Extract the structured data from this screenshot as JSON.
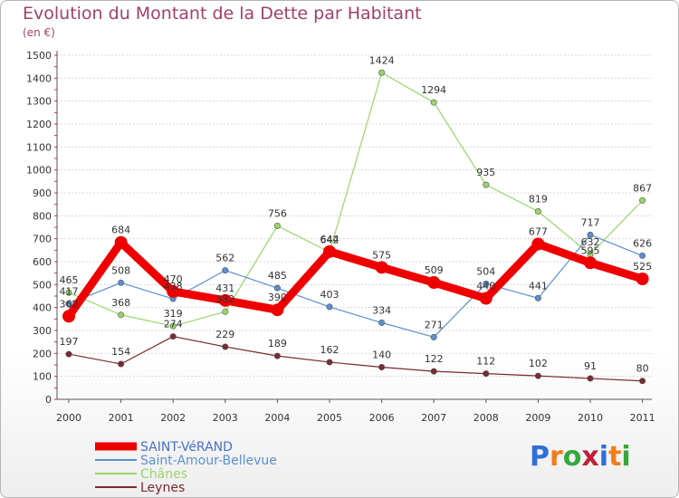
{
  "header": {
    "title": "Evolution du Montant de la Dette par Habitant",
    "subtitle": "(en €)"
  },
  "brand": {
    "letters": [
      "P",
      "r",
      "o",
      "x",
      "i",
      "t",
      "i"
    ]
  },
  "chart_data": {
    "type": "line",
    "title": "Evolution du Montant de la Dette par Habitant",
    "ylabel": "(en €)",
    "xlabel": "",
    "x": [
      "2000",
      "2001",
      "2002",
      "2003",
      "2004",
      "2005",
      "2006",
      "2007",
      "2008",
      "2009",
      "2010",
      "2011"
    ],
    "ylim": [
      0,
      1500
    ],
    "yticks": [
      0,
      100,
      200,
      300,
      400,
      500,
      600,
      700,
      800,
      900,
      1000,
      1100,
      1200,
      1300,
      1400,
      1500
    ],
    "grid": "horizontal",
    "legend_position": "bottom-left",
    "series": [
      {
        "name": "SAINT-VéRAND",
        "color": "#ee0000",
        "width": 9,
        "marker": 7,
        "values": [
          362,
          684,
          470,
          431,
          390,
          644,
          575,
          509,
          440,
          677,
          595,
          525
        ]
      },
      {
        "name": "Saint-Amour-Bellevue",
        "color": "#5b8fd0",
        "width": 1.2,
        "marker": 3.2,
        "values": [
          417,
          508,
          438,
          562,
          485,
          403,
          334,
          271,
          504,
          441,
          717,
          626
        ]
      },
      {
        "name": "Chânes",
        "color": "#99d66a",
        "width": 1.2,
        "marker": 3.2,
        "values": [
          465,
          368,
          319,
          382,
          756,
          642,
          1424,
          1294,
          935,
          819,
          632,
          867
        ]
      },
      {
        "name": "Leynes",
        "color": "#7a2a30",
        "width": 1.2,
        "marker": 3.2,
        "values": [
          197,
          154,
          274,
          229,
          189,
          162,
          140,
          122,
          112,
          102,
          91,
          80
        ]
      }
    ]
  }
}
